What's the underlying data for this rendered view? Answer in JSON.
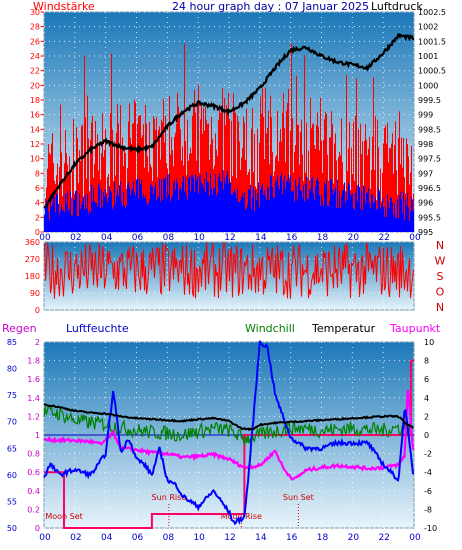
{
  "chart_data": [
    {
      "type": "line",
      "title": "24 hour graph day : 07 Januar 2025",
      "left_label": "Windstärke",
      "right_label": "Luftdruck",
      "x_ticks": [
        "00",
        "02",
        "04",
        "06",
        "08",
        "10",
        "12",
        "14",
        "16",
        "18",
        "20",
        "22",
        "00"
      ],
      "y_left_ticks": [
        "0",
        "2",
        "4",
        "6",
        "8",
        "10",
        "12",
        "14",
        "16",
        "18",
        "20",
        "22",
        "24",
        "26",
        "28",
        "30"
      ],
      "y_left_range": [
        0,
        30
      ],
      "y_right_ticks": [
        "995",
        "995.5",
        "996",
        "996.5",
        "997",
        "997.5",
        "998",
        "998.5",
        "999",
        "999.5",
        "1000",
        "1000.5",
        "1001",
        "1001.5",
        "1002",
        "1002.5"
      ],
      "y_right_range": [
        995,
        1002.5
      ],
      "series": [
        {
          "name": "wind_gust",
          "color": "#ff0000"
        },
        {
          "name": "wind_avg",
          "color": "#0000ff"
        },
        {
          "name": "Luftdruck",
          "color": "#000000",
          "x": [
            0,
            1,
            2,
            3,
            4,
            5,
            6,
            7,
            8,
            9,
            10,
            11,
            12,
            13,
            14,
            15,
            16,
            17,
            18,
            19,
            20,
            21,
            22,
            23,
            24
          ],
          "y": [
            995.8,
            996.6,
            997.3,
            997.8,
            998.1,
            997.9,
            997.8,
            997.9,
            998.6,
            999.1,
            999.4,
            999.3,
            999.1,
            999.4,
            999.9,
            1000.6,
            1001.2,
            1001.3,
            1001.0,
            1000.8,
            1000.7,
            1000.6,
            1001.1,
            1001.7,
            1001.6
          ]
        }
      ],
      "background": [
        "#1b78b8",
        "#e8f4fb"
      ]
    },
    {
      "type": "line",
      "y_ticks": [
        "0",
        "90",
        "180",
        "270",
        "360"
      ],
      "y_range": [
        0,
        360
      ],
      "right_letters": [
        "N",
        "W",
        "S",
        "O",
        "N"
      ],
      "series": [
        {
          "name": "wind_direction",
          "color": "#ff0000"
        }
      ],
      "background": [
        "#1b78b8",
        "#e8f4fb"
      ]
    },
    {
      "type": "line",
      "legend": [
        "Regen",
        "Luftfeuchte",
        "Windchill",
        "Temperatur",
        "Taupunkt"
      ],
      "x_ticks": [
        "00",
        "02",
        "04",
        "06",
        "08",
        "10",
        "12",
        "14",
        "16",
        "18",
        "20",
        "22",
        "00"
      ],
      "y_humidity_ticks": [
        "85",
        "80",
        "75",
        "70",
        "65",
        "60",
        "55",
        "50"
      ],
      "y_humidity_range": [
        50,
        85
      ],
      "y_rain_ticks": [
        "2",
        "1.8",
        "1.6",
        "1.4",
        "1.2",
        "1",
        "0.8",
        "0.6",
        "0.4",
        "0.2",
        "0"
      ],
      "y_rain_range": [
        0,
        2
      ],
      "y_temp_ticks": [
        "10",
        "8",
        "6",
        "4",
        "2",
        "0",
        "-2",
        "-4",
        "-6",
        "-8",
        "-10"
      ],
      "y_temp_range": [
        -10,
        10
      ],
      "annotations": [
        "Moon Set",
        "Sun Rise",
        "Moon Rise",
        "Sun Set"
      ],
      "series": [
        {
          "name": "Temperatur",
          "color": "#000000",
          "x": [
            0,
            1,
            2,
            3,
            4,
            5,
            6,
            7,
            8,
            9,
            10,
            11,
            12,
            12.8,
            13.5,
            14,
            15,
            16,
            17,
            18,
            19,
            20,
            21,
            22,
            23,
            23.5,
            24
          ],
          "y": [
            3.3,
            3.0,
            2.6,
            2.4,
            2.3,
            2.0,
            1.8,
            1.7,
            1.6,
            1.5,
            1.7,
            1.8,
            1.5,
            0.7,
            0.6,
            1.1,
            1.3,
            1.4,
            1.5,
            1.6,
            1.7,
            1.8,
            1.9,
            2.0,
            2.0,
            1.2,
            0.7
          ]
        },
        {
          "name": "Windchill",
          "color": "#008000",
          "x": [
            0,
            1,
            2,
            3,
            4,
            5,
            6,
            7,
            8,
            9,
            10,
            11,
            12,
            13,
            14,
            15,
            16,
            17,
            18,
            19,
            20,
            21,
            22,
            23,
            24
          ],
          "y": [
            2.5,
            2.3,
            1.6,
            1.3,
            1.2,
            0.8,
            0.5,
            0.3,
            0.2,
            0.0,
            0.4,
            0.7,
            0.5,
            -0.4,
            0.0,
            0.4,
            0.8,
            0.7,
            0.5,
            0.6,
            0.7,
            0.6,
            0.5,
            0.8,
            0.4
          ]
        },
        {
          "name": "Taupunkt",
          "color": "#ff00ff",
          "x": [
            0,
            2,
            3,
            3.7,
            4.5,
            5,
            6,
            7,
            8,
            9,
            10,
            11,
            12,
            13,
            14,
            15,
            15.6,
            16.2,
            17,
            18,
            19,
            20,
            21,
            22,
            23,
            23.4,
            23.6,
            24
          ],
          "y": [
            -0.5,
            -0.6,
            -0.7,
            -1.0,
            0.2,
            -1.4,
            -1.6,
            -1.9,
            -2.0,
            -2.4,
            -2.3,
            -2.1,
            -2.6,
            -3.5,
            -3.3,
            -1.7,
            -3.8,
            -4.8,
            -3.8,
            -3.5,
            -3.3,
            -3.4,
            -3.6,
            -3.5,
            -3.2,
            -2.2,
            5.2,
            -2.8
          ]
        },
        {
          "name": "Luftfeuchte",
          "color": "#0000ff",
          "x": [
            0,
            0.4,
            1,
            2,
            3,
            3.3,
            4,
            4.5,
            5,
            5.5,
            6,
            6.5,
            7,
            7.5,
            8,
            8.6,
            9,
            10,
            11,
            12,
            12.3,
            13,
            13.3,
            14,
            14.5,
            15,
            16,
            17,
            18,
            19,
            20,
            21,
            22,
            23,
            23.4,
            24
          ],
          "y": [
            59.5,
            62,
            60,
            61,
            60,
            61,
            64,
            76,
            64,
            67,
            63,
            62,
            60,
            65,
            59,
            58,
            56,
            54,
            57,
            53,
            51,
            52,
            61,
            85,
            84,
            75,
            67,
            65,
            65,
            66,
            66,
            66,
            62,
            59,
            73,
            59
          ]
        },
        {
          "name": "Regen",
          "color": "#ff0066",
          "x": [
            0,
            1.3,
            1.3,
            7,
            7,
            13,
            13,
            23.8,
            23.8,
            24
          ],
          "y": [
            0.6,
            0.6,
            0,
            0,
            0.15,
            0.15,
            1.0,
            1.0,
            1.8,
            1.8
          ]
        }
      ],
      "background": [
        "#1b78b8",
        "#e8f4fb"
      ]
    }
  ]
}
